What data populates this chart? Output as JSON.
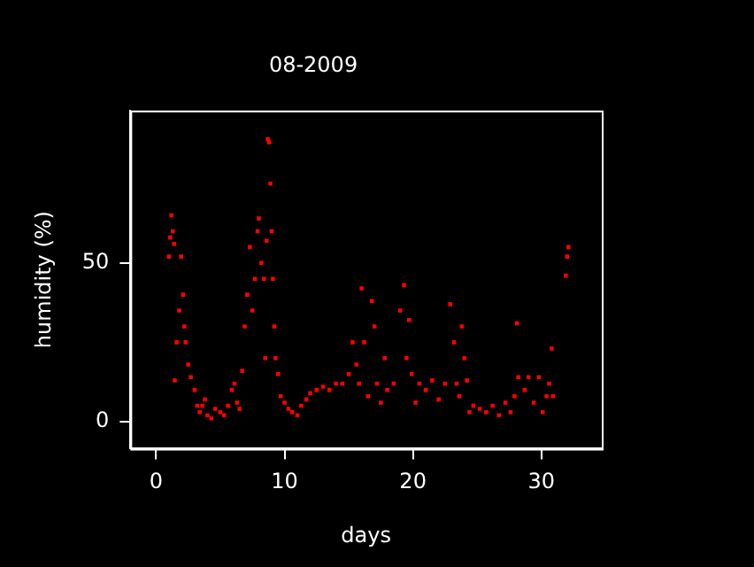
{
  "chart_data": {
    "type": "scatter",
    "title": "08-2009",
    "xlabel": "days",
    "ylabel": "humidity (%)",
    "xlim": [
      -2,
      34.7
    ],
    "ylim": [
      -8.5,
      98
    ],
    "xticks": [
      0,
      10,
      20,
      30
    ],
    "yticks": [
      0,
      50
    ],
    "grid": false,
    "legend": false,
    "marker": "square",
    "series": [
      {
        "color": "#ff0000",
        "x": [
          1.0,
          1.1,
          1.2,
          1.3,
          1.4,
          1.45,
          1.6,
          1.8,
          1.95,
          2.1,
          2.2,
          2.3,
          2.5,
          2.7,
          3.0,
          3.2,
          3.4,
          3.6,
          3.8,
          4.0,
          4.3,
          4.6,
          5.0,
          5.3,
          5.6,
          5.9,
          6.1,
          6.3,
          6.5,
          6.7,
          6.9,
          7.1,
          7.3,
          7.5,
          7.7,
          7.9,
          8.0,
          8.2,
          8.4,
          8.5,
          8.6,
          8.7,
          8.8,
          8.9,
          9.0,
          9.1,
          9.2,
          9.3,
          9.5,
          9.7,
          10.0,
          10.3,
          10.6,
          11.0,
          11.3,
          11.7,
          12.0,
          12.5,
          13.0,
          13.5,
          14.0,
          14.5,
          15.0,
          15.3,
          15.6,
          15.8,
          16.0,
          16.2,
          16.5,
          16.8,
          17.0,
          17.2,
          17.5,
          17.8,
          18.0,
          18.5,
          19.0,
          19.3,
          19.5,
          19.7,
          19.9,
          20.2,
          20.5,
          21.0,
          21.5,
          22.0,
          22.5,
          22.9,
          23.2,
          23.4,
          23.6,
          23.8,
          24.0,
          24.2,
          24.4,
          24.7,
          25.2,
          25.7,
          26.2,
          26.7,
          27.2,
          27.6,
          27.9,
          28.1,
          28.2,
          28.7,
          29.0,
          29.4,
          29.8,
          30.1,
          30.4,
          30.6,
          30.8,
          30.9,
          31.9,
          32.0,
          32.1
        ],
        "values": [
          52,
          58,
          65,
          60,
          56,
          13,
          25,
          35,
          52,
          40,
          30,
          25,
          18,
          14,
          10,
          5,
          3,
          5,
          7,
          2,
          1,
          4,
          3,
          2,
          5,
          10,
          12,
          6,
          4,
          16,
          30,
          40,
          55,
          35,
          45,
          60,
          64,
          50,
          45,
          20,
          57,
          89,
          88,
          75,
          60,
          45,
          30,
          20,
          15,
          8,
          6,
          4,
          3,
          2,
          5,
          7,
          9,
          10,
          11,
          10,
          12,
          12,
          15,
          25,
          18,
          12,
          42,
          25,
          8,
          38,
          30,
          12,
          6,
          20,
          10,
          12,
          35,
          43,
          20,
          32,
          15,
          6,
          12,
          10,
          13,
          7,
          12,
          37,
          25,
          12,
          8,
          30,
          20,
          13,
          3,
          5,
          4,
          3,
          5,
          2,
          6,
          3,
          8,
          31,
          14,
          10,
          14,
          6,
          14,
          3,
          8,
          12,
          23,
          8,
          46,
          52,
          55
        ]
      }
    ]
  }
}
